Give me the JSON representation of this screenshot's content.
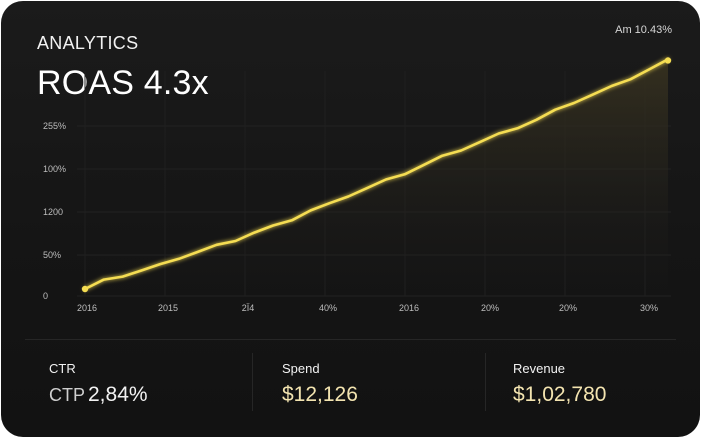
{
  "header": {
    "eyebrow": "ANALYTICS",
    "headline": "ROAS 4.3x",
    "badge": "Am 10.43%"
  },
  "colors": {
    "line": "#f5dd52",
    "area_top": "#3a3420",
    "metric_gold": "#f3e4b0"
  },
  "chart_data": {
    "type": "area",
    "x_tick_labels": [
      "2016",
      "2015",
      "2Ї4",
      "40%",
      "2016",
      "20%",
      "20%",
      "30%"
    ],
    "y_tick_labels": [
      "0",
      "50%",
      "1200",
      "100%",
      "255%"
    ],
    "series": [
      {
        "values": [
          0,
          11,
          18,
          25,
          32,
          42,
          50,
          58,
          66,
          76,
          84,
          94,
          106,
          114,
          126,
          136,
          146,
          156,
          167,
          178,
          188,
          198,
          208,
          218,
          228,
          240,
          252,
          262,
          272,
          284,
          296,
          308
        ]
      }
    ],
    "ylim": [
      0,
      310
    ],
    "grid": true
  },
  "metrics": [
    {
      "label": "CTR",
      "prefix": "CTP",
      "value": "2,84%"
    },
    {
      "label": "Spend",
      "prefix": "",
      "value": "$12,126"
    },
    {
      "label": "Revenue",
      "prefix": "",
      "value": "$1,02,780"
    }
  ]
}
